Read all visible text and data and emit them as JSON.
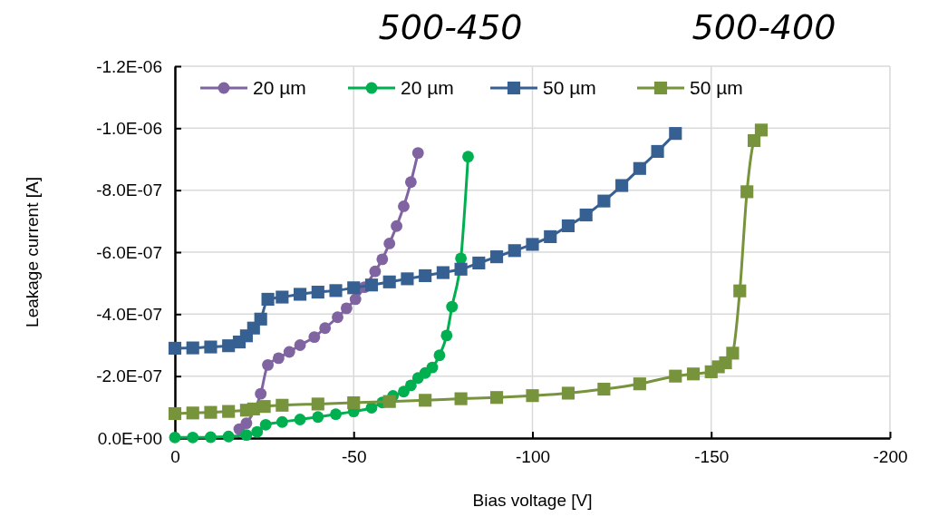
{
  "chart_data": {
    "type": "line",
    "xlabel": "Bias voltage [V]",
    "ylabel": "Leakage current [A]",
    "annotations": [
      "500-450",
      "500-400"
    ],
    "xlim": [
      0,
      -200
    ],
    "xticks": [
      0,
      -50,
      -100,
      -150,
      -200
    ],
    "ylim": [
      0,
      -1.2e-06
    ],
    "yticks": [
      {
        "value": 0,
        "label": "0.0E+00"
      },
      {
        "value": -2e-07,
        "label": "-2.0E-07"
      },
      {
        "value": -4e-07,
        "label": "-4.0E-07"
      },
      {
        "value": -6e-07,
        "label": "-6.0E-07"
      },
      {
        "value": -8e-07,
        "label": "-8.0E-07"
      },
      {
        "value": -1e-06,
        "label": "-1.0E-06"
      },
      {
        "value": -1.2e-06,
        "label": "-1.2E-06"
      }
    ],
    "grid": true,
    "legend": "top",
    "line_style": "solid",
    "series": [
      {
        "name": "20 µm",
        "color": "#8064a2",
        "marker": "circle",
        "x": [
          -18,
          -20,
          -24,
          -26,
          -29,
          -32,
          -35,
          -39,
          -42,
          -45.5,
          -48,
          -50.5,
          -53,
          -56,
          -58,
          -60,
          -62,
          -64,
          -66,
          -68
        ],
        "values": [
          -2.9e-08,
          -4.8e-08,
          -1.43e-07,
          -2.36e-07,
          -2.58e-07,
          -2.78e-07,
          -3e-07,
          -3.26e-07,
          -3.55e-07,
          -3.9e-07,
          -4.19e-07,
          -4.48e-07,
          -4.87e-07,
          -5.38e-07,
          -5.77e-07,
          -6.28e-07,
          -6.84e-07,
          -7.48e-07,
          -8.26e-07,
          -9.2e-07
        ]
      },
      {
        "name": "20 µm",
        "color": "#00b050",
        "marker": "circle",
        "x": [
          0,
          -5,
          -10,
          -15,
          -20,
          -23,
          -25.4,
          -30,
          -35,
          -40,
          -45,
          -50,
          -55,
          -58,
          -61,
          -64,
          -66,
          -68,
          -70,
          -72,
          -74,
          -76,
          -77.5,
          -80,
          -82
        ],
        "values": [
          -2e-09,
          -2e-09,
          -3e-09,
          -5e-09,
          -1e-08,
          -2e-08,
          -4.3e-08,
          -5.2e-08,
          -6e-08,
          -6.8e-08,
          -7.7e-08,
          -8.6e-08,
          -9.8e-08,
          -1.15e-07,
          -1.36e-07,
          -1.5e-07,
          -1.7e-07,
          -1.94e-07,
          -2.1e-07,
          -2.28e-07,
          -2.67e-07,
          -3.31e-07,
          -4.24e-07,
          -5.8e-07,
          -9.08e-07
        ]
      },
      {
        "name": "50 µm",
        "color": "#376092",
        "marker": "square",
        "x": [
          0,
          -5,
          -10,
          -15,
          -18,
          -20,
          -22,
          -24,
          -26,
          -30,
          -35,
          -40,
          -45,
          -50,
          -55,
          -60,
          -65,
          -70,
          -75,
          -80,
          -85,
          -90,
          -95,
          -100,
          -105,
          -110,
          -115,
          -120,
          -125,
          -130,
          -135,
          -140
        ],
        "values": [
          -2.9e-07,
          -2.91e-07,
          -2.94e-07,
          -2.98e-07,
          -3.1e-07,
          -3.3e-07,
          -3.55e-07,
          -3.84e-07,
          -4.48e-07,
          -4.55e-07,
          -4.64e-07,
          -4.71e-07,
          -4.76e-07,
          -4.85e-07,
          -4.94e-07,
          -5.04e-07,
          -5.14e-07,
          -5.24e-07,
          -5.34e-07,
          -5.45e-07,
          -5.65e-07,
          -5.85e-07,
          -6.05e-07,
          -6.25e-07,
          -6.5e-07,
          -6.85e-07,
          -7.2e-07,
          -7.65e-07,
          -8.15e-07,
          -8.7e-07,
          -9.25e-07,
          -9.83e-07
        ]
      },
      {
        "name": "50 µm",
        "color": "#77933c",
        "marker": "square",
        "x": [
          0,
          -5,
          -10,
          -15,
          -20,
          -22,
          -25,
          -30,
          -40,
          -50,
          -60,
          -70,
          -80,
          -90,
          -100,
          -110,
          -120,
          -130,
          -140,
          -145,
          -150,
          -152,
          -154,
          -156,
          -158,
          -160,
          -162,
          -164
        ],
        "values": [
          -7.9e-08,
          -8.1e-08,
          -8.3e-08,
          -8.6e-08,
          -9e-08,
          -9.4e-08,
          -1.02e-07,
          -1.06e-07,
          -1.1e-07,
          -1.14e-07,
          -1.18e-07,
          -1.22e-07,
          -1.27e-07,
          -1.31e-07,
          -1.37e-07,
          -1.45e-07,
          -1.58e-07,
          -1.75e-07,
          -2e-07,
          -2.07e-07,
          -2.14e-07,
          -2.3e-07,
          -2.43e-07,
          -2.74e-07,
          -4.75e-07,
          -7.95e-07,
          -9.6e-07,
          -9.94e-07
        ]
      }
    ]
  }
}
